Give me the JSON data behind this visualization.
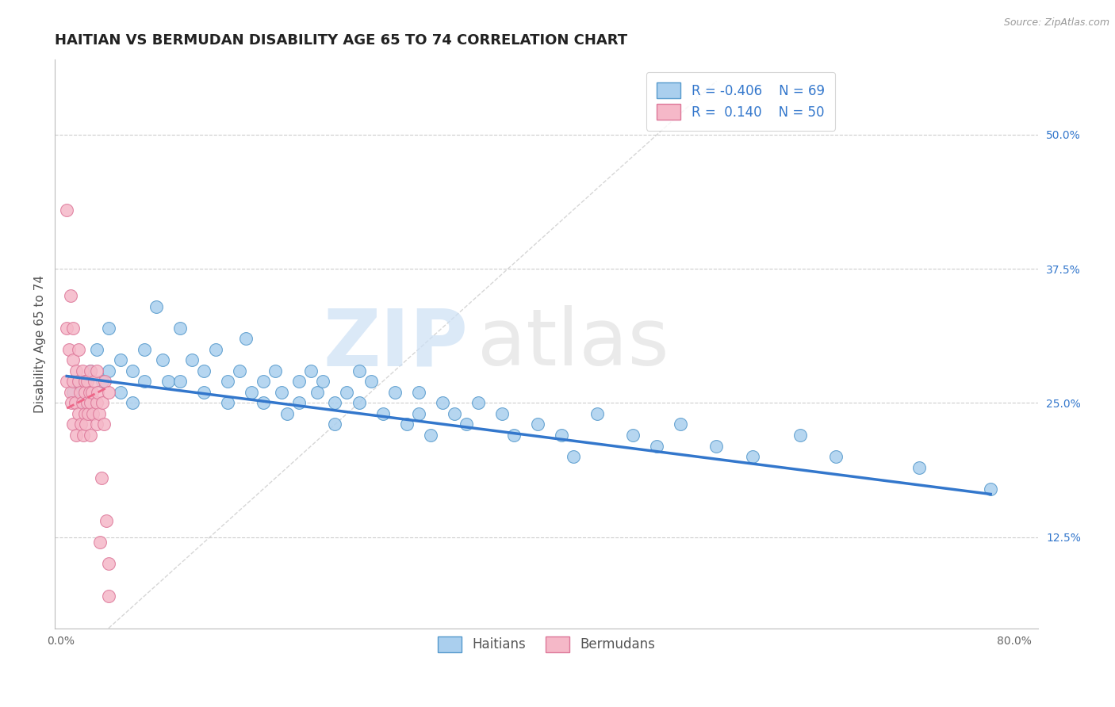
{
  "title": "HAITIAN VS BERMUDAN DISABILITY AGE 65 TO 74 CORRELATION CHART",
  "source": "Source: ZipAtlas.com",
  "ylabel": "Disability Age 65 to 74",
  "xlim": [
    -0.005,
    0.82
  ],
  "ylim": [
    0.04,
    0.57
  ],
  "xticks": [
    0.0,
    0.1,
    0.2,
    0.3,
    0.4,
    0.5,
    0.6,
    0.7,
    0.8
  ],
  "xticklabels": [
    "0.0%",
    "",
    "",
    "",
    "",
    "",
    "",
    "",
    "80.0%"
  ],
  "ytick_right_labels": [
    "12.5%",
    "25.0%",
    "37.5%",
    "50.0%"
  ],
  "ytick_right_values": [
    0.125,
    0.25,
    0.375,
    0.5
  ],
  "haitian_R": -0.406,
  "haitian_N": 69,
  "bermudan_R": 0.14,
  "bermudan_N": 50,
  "haitian_color": "#aacfee",
  "haitian_edge": "#5599cc",
  "bermudan_color": "#f5b8c8",
  "bermudan_edge": "#dd7799",
  "title_fontsize": 13,
  "label_fontsize": 11,
  "tick_fontsize": 10,
  "legend_fontsize": 12,
  "background_color": "#ffffff",
  "grid_color": "#cccccc",
  "blue_line_color": "#3377cc",
  "pink_line_color": "#ee6688",
  "haitian_line_start_x": 0.005,
  "haitian_line_end_x": 0.78,
  "haitian_line_start_y": 0.275,
  "haitian_line_end_y": 0.165,
  "bermudan_line_start_x": 0.005,
  "bermudan_line_end_x": 0.04,
  "bermudan_line_start_y": 0.245,
  "bermudan_line_end_y": 0.265,
  "haitian_x": [
    0.01,
    0.015,
    0.02,
    0.025,
    0.03,
    0.035,
    0.04,
    0.04,
    0.05,
    0.05,
    0.06,
    0.06,
    0.07,
    0.07,
    0.08,
    0.085,
    0.09,
    0.1,
    0.1,
    0.11,
    0.12,
    0.12,
    0.13,
    0.14,
    0.14,
    0.15,
    0.155,
    0.16,
    0.17,
    0.17,
    0.18,
    0.185,
    0.19,
    0.2,
    0.2,
    0.21,
    0.215,
    0.22,
    0.23,
    0.23,
    0.24,
    0.25,
    0.25,
    0.26,
    0.27,
    0.28,
    0.29,
    0.3,
    0.3,
    0.31,
    0.32,
    0.33,
    0.34,
    0.35,
    0.37,
    0.38,
    0.4,
    0.42,
    0.43,
    0.45,
    0.48,
    0.5,
    0.52,
    0.55,
    0.58,
    0.62,
    0.65,
    0.72,
    0.78
  ],
  "haitian_y": [
    0.26,
    0.27,
    0.25,
    0.28,
    0.3,
    0.27,
    0.32,
    0.28,
    0.29,
    0.26,
    0.28,
    0.25,
    0.3,
    0.27,
    0.34,
    0.29,
    0.27,
    0.32,
    0.27,
    0.29,
    0.28,
    0.26,
    0.3,
    0.27,
    0.25,
    0.28,
    0.31,
    0.26,
    0.27,
    0.25,
    0.28,
    0.26,
    0.24,
    0.27,
    0.25,
    0.28,
    0.26,
    0.27,
    0.25,
    0.23,
    0.26,
    0.28,
    0.25,
    0.27,
    0.24,
    0.26,
    0.23,
    0.26,
    0.24,
    0.22,
    0.25,
    0.24,
    0.23,
    0.25,
    0.24,
    0.22,
    0.23,
    0.22,
    0.2,
    0.24,
    0.22,
    0.21,
    0.23,
    0.21,
    0.2,
    0.22,
    0.2,
    0.19,
    0.17
  ],
  "bermudan_x": [
    0.005,
    0.005,
    0.005,
    0.007,
    0.008,
    0.008,
    0.009,
    0.01,
    0.01,
    0.01,
    0.01,
    0.012,
    0.013,
    0.013,
    0.015,
    0.015,
    0.015,
    0.016,
    0.017,
    0.018,
    0.018,
    0.019,
    0.02,
    0.02,
    0.02,
    0.021,
    0.022,
    0.022,
    0.023,
    0.024,
    0.025,
    0.025,
    0.025,
    0.026,
    0.027,
    0.028,
    0.03,
    0.03,
    0.03,
    0.031,
    0.032,
    0.033,
    0.034,
    0.035,
    0.036,
    0.037,
    0.038,
    0.04,
    0.04,
    0.04
  ],
  "bermudan_y": [
    0.43,
    0.27,
    0.32,
    0.3,
    0.26,
    0.35,
    0.25,
    0.29,
    0.23,
    0.27,
    0.32,
    0.25,
    0.28,
    0.22,
    0.27,
    0.3,
    0.24,
    0.26,
    0.23,
    0.28,
    0.25,
    0.22,
    0.27,
    0.24,
    0.26,
    0.23,
    0.27,
    0.25,
    0.24,
    0.26,
    0.25,
    0.28,
    0.22,
    0.26,
    0.24,
    0.27,
    0.25,
    0.23,
    0.28,
    0.26,
    0.24,
    0.12,
    0.18,
    0.25,
    0.23,
    0.27,
    0.14,
    0.26,
    0.1,
    0.07
  ]
}
